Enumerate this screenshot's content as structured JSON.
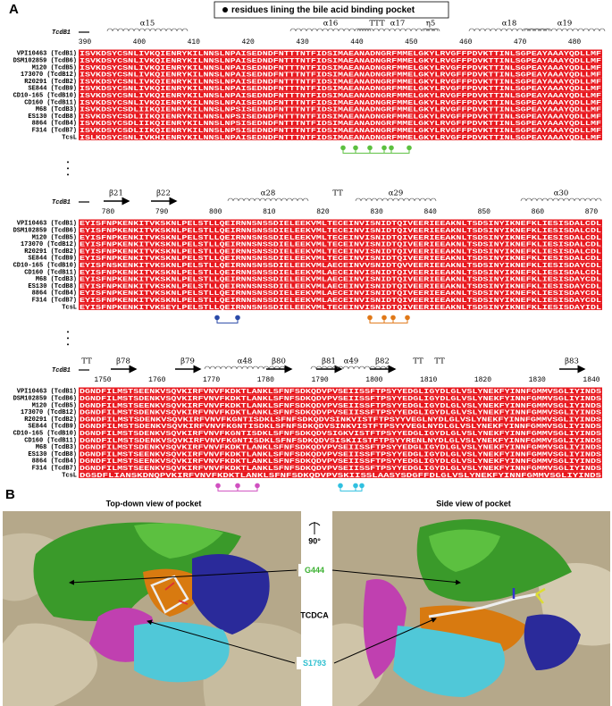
{
  "figure": {
    "panel_a": {
      "label": "A",
      "legend": "residues lining the bile acid binding pocket",
      "sequence_names": [
        "VPI10463 (TcdB1)",
        "DSM102859 (TcdB6)",
        "M120 (TcdB5)",
        "173070 (TcdB12)",
        "R20291 (TcdB2)",
        "SE844 (TcdB9)",
        "CD10-165 (TcdB10)",
        "CD160 (TcdB11)",
        "M68 (TcdB3)",
        "ES130 (TcdB8)",
        "8864 (TcdB4)",
        "F314 (TcdB7)",
        "TcsL"
      ],
      "blocks": [
        {
          "gene_label": "TcdB1",
          "structure_labels": [
            "α15",
            "α16",
            "TTT",
            "α17",
            "η5",
            "α18",
            "α19"
          ],
          "ruler": [
            390,
            400,
            410,
            420,
            430,
            440,
            450,
            460,
            470,
            480
          ],
          "sequences": [
            "ISVKDSYCSNLIVKQIENRYKILNNSLNPAISEDNDFNTTTNTFIDSIMAEANADNGRFMMELGKYLRVGFFPDVKTTINLSGPEAYAAAYQDLLMF",
            "ISVKDSYCSNLIVKQIENRYKILNNSLNPAISEDNDFNTTTNTFIDSIMAEANADNGRFMMELGKYLRVGFFPDVKTTINLSGPEAYAAAYQDLLMF",
            "ISVKDSYCSNLIVKQIENRYKILNNSLNPAISEDNDFNTTTNTFIDSIMAEANADNGRFMMELGKYLRVGFFPDVKTTINLSGPEAYAAAYQDLLMF",
            "ISVKDSYCSNLIVKQIENRYKILNNSLNPAISEDNDFNTTTNTFIDSIMAEANADNGRFMMELGKYLRVGFFPDVKTTINLSGPEAYAAAYQDLLMF",
            "ISVKDSYCSNLIVKQIENRYKILNNSLNPAISEDNDFNTTTNTFIDSIMAEANADNGRFMMELGKYLRVGFFPDVKTTINLSGPEAYAAAYQDLLMF",
            "ISVKDSYCSNLIVKQIENRYKILNNSLNPAISEDNDFNTTTNTFIDSIMAEANADNGRFMMELGKYLRVGFFPDVKTTINLSGPEAYAAAYQDLLMF",
            "ISVKDSYCSNLIVKQIENRYKILNNSLNPAISEDNDFNTTTNTFIDSIMAEANADNGRFMMELGKYLRVGFFPDVKTTINLSGPEAYAAAYQDLLMF",
            "ISVKDSYCSNLIVKQIENRYKILNNSLNPAISEDNDFNTTTNTFIDSIMAEANADNGRFMMELGKYLRVGFFPDVKTTINLSGPEAYAAAYQDLLMF",
            "ISVKDSYCSDLIIKQIENRYKILNNSLNPSISEDNDFNTTTNTFIDSIMAEANADNGRFMMELGKYLRVGFFPDVKTTINLSGPEAYAAAYQDLLMF",
            "ISVKDSYCSDLIIKQIENRYKILNNSLNPSISEDNDFNTTTNTFIDSIMAEANADNGRFMMELGKYLRVGFFPDVKTTINLSGPEAYAAAYQDLLMF",
            "ISVKDSYCSDLIIKQIENRYKILNNSLNPSISEDNDFNTTTNTFIDSIMAEANADNGRFMMELGKYLRVGFFPDVKTTINLSGPEAYAAAYQDLLMF",
            "ISVKDSYCSDLIIKQIENRYKILNNSLNPSISEDNDFNTTTNTFIDSIMAEANADNGRFMMELGKYLRVGFFPDVKTTINLSGPEAYAAAYQDLLMF",
            "ISLKDSYCSNLIVKHIENRYKILNNSLNPAISEDNDFNTTTNTFIDSIMAEANADNGRFMMELGKYLRVGFFPDVKTTINLSGPEAYAAAYQDLLMF"
          ]
        },
        {
          "gene_label": "TcdB1",
          "structure_labels": [
            "β21",
            "β22",
            "α28",
            "TT",
            "α29",
            "α30"
          ],
          "ruler": [
            780,
            790,
            800,
            810,
            820,
            830,
            840,
            850,
            860,
            870
          ],
          "sequences": [
            "EYISFNPKENKITVKSKNLPELSTLLQEIRNNSNSSDIELEEKVMLTECEINVISNIDTQIVEERIEEAKNLTSDSINYIKNEFKLIESISDALCDL",
            "EYISFNPKENKITVKSKNLPELSTLLQEIRNNSNSSDIELEEKVMLTECEINVISNIDTQIVEERIEEAKNLTSDSINYIKNEFKLIESISDALCDL",
            "EYISFNPKENKITVKSKNLPELSTLLQEIRNNSNSSDIELEEKVMLTECEINVISNIDTQIVEERIEEAKNLTSDSINYIKNEFKLIESISDALCDL",
            "EYISFNPKENKITVKSKNLPELSTLLQEIRNNSNSSDIELEEKVMLTECEINVISNIDTQIVEERIEEAKNLTSDSINYIKNEFKLIESISDALCDL",
            "EYISFNPKENKITVKSKNLPELSTLLQEIRNNSNSSDIELEEKVMLTECEINVISNIDTQIVEERIEEAKNLTSDSINYIKNEFKLIESISDALCDL",
            "EYISFNPKENKITVKSKNLPELSTLLQEIRNNSNSSDIELEEKVMLTECEINVISNIDTQIVEERIEEAKNLTSDSINYIKNEFKLIESISDALCDL",
            "EYISFNSKENKITVKSKNLPELSTLLQEIRNNSNSSDIELEEKVMLAECEINVVSNIDTQVVEERIEEAKNLTSDSINYIKNEFKLIESISDAYCDL",
            "EYISFNPKENKITVKSKNLPELSTLLQEIRNNSNSSDIELEEKVMLAECEINVISNIDTQIVEERIEEAKNLTSDSINYIKNEFKLIESISDALCDL",
            "EYISFNPKENKITVKSKNLPELSTLLQEIRNNSNSSDIELEEKVMLAECEINVISNIDTQIVEERIEEAKNLTSDSINYIKNEFKLIESISDAYCDL",
            "EYISFNPKENKITVKSKNLPELSTLLQEIRNNSNSSDIELEEKVMLAECEINVISNIDTQIVEERIEEAKNLTSDSINYIKNEFKLIESISDAYCDL",
            "EYISFNPKENKITVKSKNLPELSTLLQEIRNNSNSSDIELEEKVMLAECEINVISNIDTQIVEERIEEAKNLTSDSINYIKNEFKLIESISDAYCDL",
            "EYISFNPKENKITVKSKNLPELSTLLQEIRNNSNSSDIELEEKVMLAECEINVISNIDTQIVEERIEEAKNLTSDSINYIKNEFKLIESISDAYCDL",
            "EYISFNPKENKITVKSEYLPELSTLLQEIRNNSNSSDIELEEKVMLTECEINVISNIDTQIVEERIEEAKNLTSDSINYIKNEFKLIESISDAYIDL"
          ]
        },
        {
          "gene_label": "TcdB1",
          "structure_labels": [
            "TT",
            "β78",
            "β79",
            "α48",
            "β80",
            "β81",
            "α49",
            "β82",
            "TT",
            "TT",
            "β83"
          ],
          "ruler": [
            1750,
            1760,
            1770,
            1780,
            1790,
            1800,
            1810,
            1820,
            1830,
            1840
          ],
          "sequences": [
            "DGNDFILMSTSEENKVSQVKIRFVNVFKDKTLANKLSFNFSDKQDVPVSEIISSFTPSYYEDGLIGYDLGLVSLYNEKFYINNFGMMVSGLIYINDS",
            "DGNDFILMSTSDENKVSQVKIRFVNVFKDKTLANKLSFNFSDKQDVPVSEIISSFTPSYYEDGLIGYDLGLVSLYNEKFYINNFGMMVSGLIYINDS",
            "DGNDFILMSTSEENKVSQVKIRFVNVFKDKTLANKLSFNFSDKQDVPVSEIISSFTPSYYEDGLIGYDLGLVSLYNEKFYINNFGMMVSGLIYINDS",
            "DGNDFILMSTSDENKVSQVKIRFVNVFKDKTLANKLSFNFSDKQDVPVSEIISSFTPSYYEDGLIGYDLGLVSLYNEKFYINNFGMMVSGLIYINDS",
            "DGNDFILMSTSDENKVSQVKIRFVNVFKGNTISDKLSFNFSDKQDVSINKVISTFTPSYYVEGLNYDLGLVSLYNEKFYINNFGMMVSGLIYINDS",
            "DGNDFILMSTSDENKVSQVKIRFVNVFKGNTISDKLSFNFSDKQDVSINKVISTFTPSYYVEGLNYDLGLVSLYNEKFYINNFGMMVSGLIYINDS",
            "DGNDFILMSTSDENKVSQVKIRFVNVFKGNTISDKLSFNFSDKQDVSIGKVISTFTPSYYEDGLIGYDLGLVSLYNEKFYINNFGMMVSGLIYINDS",
            "DGNDFILMSTSDENKVSQVKIRFVNVFKGNTISDKLSFNFSDKQDVSISKIISTFTPSYYRENLNYDLGLVSLYNEKFYINNFGMMVSGLIYINDS",
            "DGNDFILMSTSDENKVSQVKIRFVNVFKDKTLANKLSFNFSDKQDVPVSEIISSFTPSYYEDGLIGYDLGLVSLYNEKFYINNFGMMVSGLIYINDS",
            "DGNDFILMSTSEENKVSQVKIRFVNVFKDKTLANKLSFNFSDKQDVPVSEIISSFTPSYYEDGLIGYDLGLVSLYNEKFYINNFGMMVSGLIYINDS",
            "DGNDFILMSTSEENKVSQVKIRFVNVFKDKTLANKLSFNFSDKQDVPVSEIISSFTPSYYEDGLIGYDLGLVSLYNEKFYINNFGMMVSGLIYINDS",
            "DGNDFILMSTSEENKVSQVKIRFVNVFKDKTLANKLSFNFSDKQDVPVSEIISSFTPSYYEDGLIGYDLGLVSLYNEKFYINNFGMMVSGLIYINDS",
            "DGSDFLIANSKDNQPVKIRFVNVFKDKTLANKLSFNFSDKQDVPVSKIISSLAASYSDGFFDLGLVSLYNEKFYINNFGMMVSGLIYINDS"
          ]
        }
      ]
    },
    "panel_b": {
      "label": "B",
      "left_title": "Top-down view of pocket",
      "right_title": "Side view of pocket",
      "rotation": "90°",
      "residue_1": "G444",
      "ligand": "TCDCA",
      "residue_2": "S1793"
    }
  }
}
